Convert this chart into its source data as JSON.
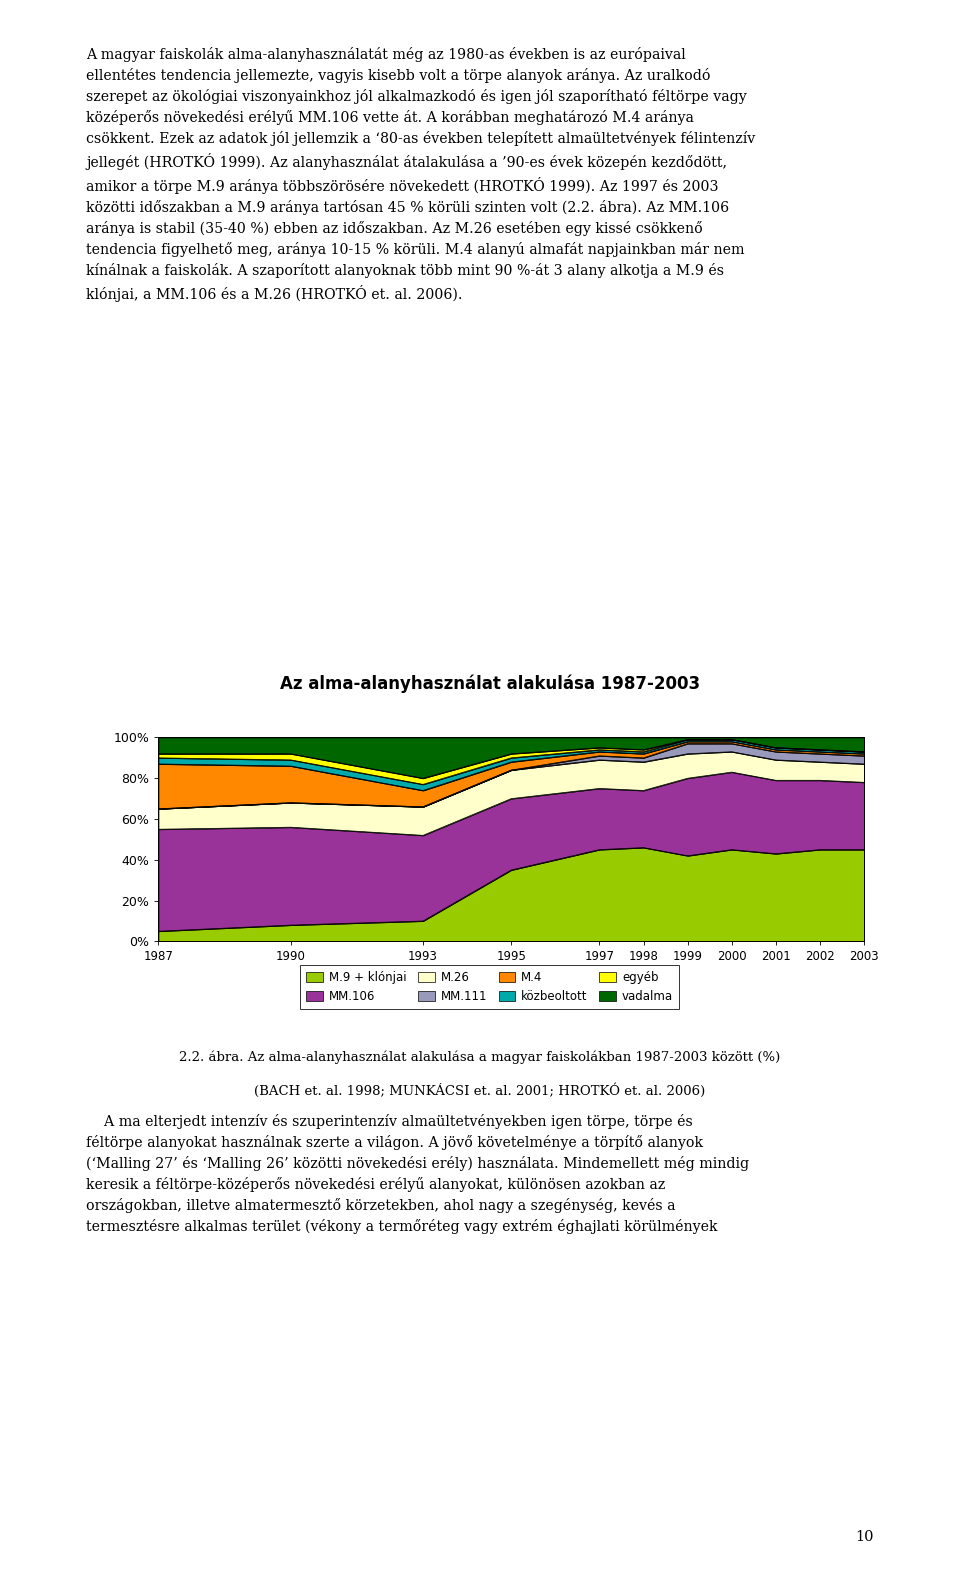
{
  "title": "Az alma-alanyhasználat alakulása 1987-2003",
  "years": [
    1987,
    1990,
    1993,
    1995,
    1997,
    1998,
    1999,
    2000,
    2001,
    2002,
    2003
  ],
  "series_order": [
    "M.9 + klónjai",
    "MM.106",
    "M.26",
    "MM.111",
    "M.4",
    "közbeoltott",
    "egyéb",
    "vadalma"
  ],
  "series": {
    "M.9 + klónjai": [
      5,
      8,
      10,
      35,
      45,
      46,
      42,
      45,
      43,
      45,
      45
    ],
    "MM.106": [
      50,
      48,
      42,
      35,
      30,
      28,
      38,
      38,
      36,
      34,
      33
    ],
    "M.26": [
      10,
      12,
      14,
      14,
      14,
      14,
      12,
      10,
      10,
      9,
      9
    ],
    "MM.111": [
      0,
      0,
      0,
      0,
      2,
      2,
      5,
      4,
      4,
      4,
      4
    ],
    "M.4": [
      22,
      18,
      8,
      4,
      2,
      2,
      1,
      1,
      1,
      1,
      1
    ],
    "közbeoltott": [
      3,
      3,
      3,
      2,
      1,
      1,
      1,
      1,
      1,
      1,
      1
    ],
    "egyéb": [
      2,
      3,
      3,
      2,
      1,
      1,
      0,
      0,
      0,
      0,
      0
    ],
    "vadalma": [
      8,
      8,
      20,
      8,
      5,
      6,
      1,
      1,
      5,
      6,
      7
    ]
  },
  "colors": {
    "M.9 + klónjai": "#99cc00",
    "MM.106": "#993399",
    "M.26": "#ffffcc",
    "MM.111": "#9999bb",
    "M.4": "#ff8800",
    "közbeoltott": "#00aaaa",
    "egyéb": "#ffff00",
    "vadalma": "#006600"
  },
  "ytick_values": [
    0,
    20,
    40,
    60,
    80,
    100
  ],
  "ytick_labels": [
    "0%",
    "20%",
    "40%",
    "60%",
    "80%",
    "100%"
  ],
  "legend_order": [
    "M.9 + klónjai",
    "MM.106",
    "M.26",
    "MM.111",
    "M.4",
    "közbeoltott",
    "egyéb",
    "vadalma"
  ],
  "caption_line1": "2.2. ábra. Az alma-alanyhasználat alakulása a magyar faiskolákban 1987-2003 között (%)",
  "caption_line2": "(B",
  "caption_line2_small": "ACH",
  "caption_line2_rest": " et. al. 1998; M",
  "caption_line2_small2": "UNKÁCSI",
  "caption_line2_rest2": " et. al. 2001; H",
  "caption_line2_small3": "ROTKÓ",
  "caption_line2_rest3": " et. al. 2006)",
  "top_text": "A magyar faiskolák alma-alanyhasználatát még az 1980-as években is az európaival\nellentétes tendencia jellemezte, vagyis kisebb volt a törpe alanyok aránya. Az uralkodó\nszerepet az ökológiai viszonyainkhoz jól alkalmazkodó és igen jól szaporítható féltörpe vagy\nközéperős növekedési erélyű MM.106 vette át. A korábban meghatározó M.4 aránya\ncsökkent. Ezek az adatok jól jellemzik a ‘80-as években telepített almaültetvények félintenzív\njellegét (H",
  "top_text2": "ROTKÓ",
  "top_text3": " 1999). Az alanyhasználat átalakulása a ’90-es évek közepén kezdődött,\namikor a törpe M.9 aránya többszörösére növekedett (H",
  "top_text4": "ROTKÓ",
  "top_text5": " 1999). Az 1997 és 2003\nközötti időszakban a M.9 aránya tartósan 45 % körüli szinten volt (2.2. ábra). Az MM.106\naránya is stabil (35-40 %) ebben az időszakban. Az M.26 esetében egy kissé csökkenő\ntendencia figyelhető meg, aránya 10-15 % körüli. M.4 alanyú almafát napjainkban már nem\nkínálnak a faiskolák. A szaporított alanyoknak több mint 90 %-át 3 alany alkotja a M.9 és\nklónjai, a MM.106 és a M.26 (H",
  "top_text6": "ROTKÓ",
  "top_text7": " et. al. 2006).",
  "bottom_text": "    A ma elterjedt intenzív és szuperintenzív almaültetvényekben igen törpe, törpe és\nféltörpe alanyokat használnak szerte a világon. A jövő követelménye a törpítő alanyok\n(‘Malling 27’ és ‘Malling 26’ közötti növekedési erély) használata. Mindemellett még mindig\nkeresik a féltörpe-középerős növekedési erélyű alanyokat, különösen azokban az\nországokban, illetve almatermesztő körzetekben, ahol nagy a szegénység, kevés a\ntermesztésre alkalmas terület (vékony a termőréteg vagy extrém éghajlati körülmények",
  "page_number": "10",
  "figsize": [
    9.6,
    15.69
  ],
  "dpi": 100
}
